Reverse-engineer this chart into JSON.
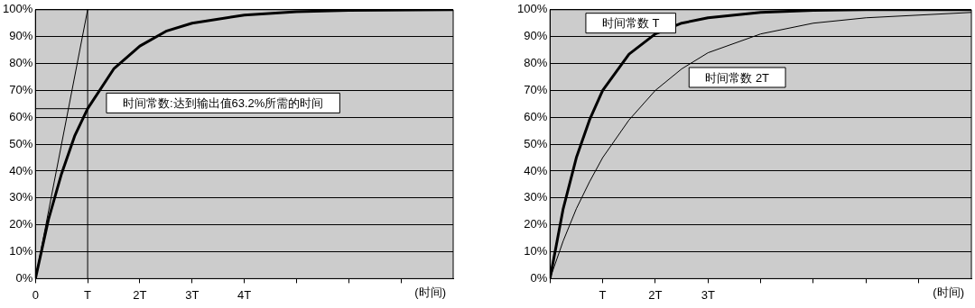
{
  "chart_data": [
    {
      "type": "line",
      "xlabel": "(时间)",
      "annotations": [
        "时间常数:达到输出值63.2%所需的时间"
      ],
      "xlim": [
        0,
        8
      ],
      "ylim": [
        0,
        100
      ],
      "xticks": [
        {
          "value": 0,
          "label": "0"
        },
        {
          "value": 1,
          "label": "T"
        },
        {
          "value": 2,
          "label": "2T"
        },
        {
          "value": 3,
          "label": "3T"
        },
        {
          "value": 4,
          "label": "4T"
        },
        {
          "value": 5,
          "label": null
        },
        {
          "value": 6,
          "label": null
        },
        {
          "value": 7,
          "label": null
        }
      ],
      "yticks": [
        {
          "value": 0,
          "label": "0%"
        },
        {
          "value": 10,
          "label": "10%"
        },
        {
          "value": 20,
          "label": "20%"
        },
        {
          "value": 30,
          "label": "30%"
        },
        {
          "value": 40,
          "label": "40%"
        },
        {
          "value": 50,
          "label": "50%"
        },
        {
          "value": 60,
          "label": "60%"
        },
        {
          "value": 70,
          "label": "70%"
        },
        {
          "value": 80,
          "label": "80%"
        },
        {
          "value": 90,
          "label": "90%"
        },
        {
          "value": 100,
          "label": "100%"
        }
      ],
      "grid": "y",
      "ref_lines": [
        {
          "axis": "x",
          "value": 1,
          "color": "#000000"
        }
      ],
      "series": [
        {
          "color": "#000000",
          "x": [
            0,
            0.25,
            0.5,
            0.75,
            1,
            1.5,
            2,
            2.5,
            3,
            4,
            5,
            6,
            8
          ],
          "values": [
            0,
            22,
            39,
            53,
            63.2,
            78,
            86.5,
            92,
            95,
            98,
            99.3,
            99.8,
            100
          ]
        },
        {
          "color": "#000000",
          "x": [
            0,
            1
          ],
          "values": [
            0,
            100
          ]
        },
        {
          "color": "#000000",
          "x": [
            0,
            1
          ],
          "values": [
            63.2,
            63.2
          ]
        }
      ]
    },
    {
      "type": "line",
      "xlabel": "(时间)",
      "xlim": [
        0,
        8
      ],
      "ylim": [
        0,
        100
      ],
      "xticks": [
        {
          "value": 0,
          "label": null
        },
        {
          "value": 1,
          "label": "T"
        },
        {
          "value": 2,
          "label": "2T"
        },
        {
          "value": 3,
          "label": "3T"
        },
        {
          "value": 4,
          "label": null
        },
        {
          "value": 5,
          "label": null
        },
        {
          "value": 6,
          "label": null
        },
        {
          "value": 7,
          "label": null
        }
      ],
      "yticks": [
        {
          "value": 0,
          "label": "0%"
        },
        {
          "value": 10,
          "label": "10%"
        },
        {
          "value": 20,
          "label": "20%"
        },
        {
          "value": 30,
          "label": "30%"
        },
        {
          "value": 40,
          "label": "40%"
        },
        {
          "value": 50,
          "label": "50%"
        },
        {
          "value": 60,
          "label": "60%"
        },
        {
          "value": 70,
          "label": "70%"
        },
        {
          "value": 80,
          "label": "80%"
        },
        {
          "value": 90,
          "label": "90%"
        },
        {
          "value": 100,
          "label": "100%"
        }
      ],
      "grid": "y",
      "series": [
        {
          "name": "时间常数 T",
          "color": "#000000",
          "x": [
            0,
            0.25,
            0.5,
            0.75,
            1,
            1.5,
            2,
            2.5,
            3,
            4,
            5,
            6,
            8
          ],
          "values": [
            0,
            26,
            45,
            59,
            70,
            83.5,
            91,
            95,
            97,
            99,
            99.8,
            100,
            100
          ]
        },
        {
          "name": "时间常数 2T",
          "color": "#000000",
          "x": [
            0,
            0.25,
            0.5,
            0.75,
            1,
            1.5,
            2,
            2.5,
            3,
            4,
            5,
            6,
            8
          ],
          "values": [
            0,
            14,
            26,
            36,
            45,
            59,
            70,
            78,
            84,
            91,
            95,
            97,
            99
          ]
        }
      ]
    }
  ]
}
